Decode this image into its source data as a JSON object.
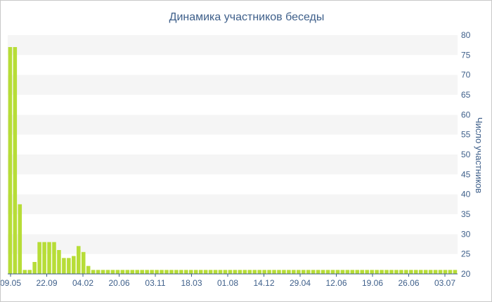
{
  "chart_data": {
    "type": "bar",
    "title": "Динамика участников беседы",
    "ylabel": "Число участников",
    "xlabel": "",
    "ylim": [
      20,
      80
    ],
    "y_ticks": [
      20,
      25,
      30,
      35,
      40,
      45,
      50,
      55,
      60,
      65,
      70,
      75,
      80
    ],
    "y_axis_side": "right",
    "grid": "alternating horizontal bands",
    "x_tick_labels": [
      "09.05",
      "22.09",
      "04.02",
      "20.06",
      "03.11",
      "18.03",
      "01.08",
      "14.12",
      "29.04",
      "12.06",
      "19.06",
      "26.06",
      "03.07"
    ],
    "bar_color": "#b7dd37",
    "values": [
      77,
      77,
      37.5,
      21,
      21,
      23,
      28,
      28,
      28,
      28,
      26,
      24,
      24,
      24.5,
      27,
      25.5,
      22,
      21,
      21,
      21,
      21,
      21,
      21,
      21,
      21,
      21,
      21,
      21,
      21,
      21,
      21,
      21,
      21,
      21,
      21,
      21,
      21,
      21,
      21,
      21,
      21,
      21,
      21,
      21,
      21,
      21,
      21,
      21,
      21,
      21,
      21,
      21,
      21,
      21,
      21,
      21,
      21,
      21,
      21,
      21,
      21,
      21,
      21,
      21,
      21,
      21,
      21,
      21,
      21,
      21,
      21,
      21,
      21,
      21,
      21,
      21,
      21,
      21,
      21,
      21,
      21,
      21,
      21,
      21,
      21,
      21,
      21,
      21,
      21,
      21,
      21,
      21
    ]
  }
}
